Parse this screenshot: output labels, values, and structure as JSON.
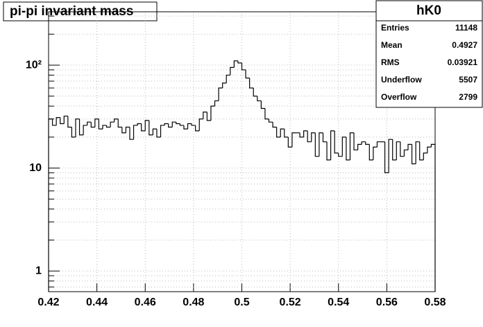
{
  "chart_data": {
    "type": "histogram",
    "title": "pi-pi invariant mass",
    "log_y": true,
    "grid": true,
    "color": "#000000",
    "bins": [
      0.42,
      0.4216,
      0.4232,
      0.4248,
      0.4264,
      0.428,
      0.4296,
      0.4312,
      0.4328,
      0.4344,
      0.436,
      0.4376,
      0.4392,
      0.4408,
      0.4424,
      0.444,
      0.4456,
      0.4472,
      0.4488,
      0.4504,
      0.452,
      0.4536,
      0.4552,
      0.4568,
      0.4584,
      0.46,
      0.4616,
      0.4632,
      0.4648,
      0.4664,
      0.468,
      0.4696,
      0.4712,
      0.4728,
      0.4744,
      0.476,
      0.4776,
      0.4792,
      0.4808,
      0.4824,
      0.484,
      0.4856,
      0.4872,
      0.4888,
      0.4904,
      0.492,
      0.4936,
      0.4952,
      0.4968,
      0.4984,
      0.5,
      0.5016,
      0.5032,
      0.5048,
      0.5064,
      0.508,
      0.5096,
      0.5112,
      0.5128,
      0.5144,
      0.516,
      0.5176,
      0.5192,
      0.5208,
      0.5224,
      0.524,
      0.5256,
      0.5272,
      0.5288,
      0.5304,
      0.532,
      0.5336,
      0.5352,
      0.5368,
      0.5384,
      0.54,
      0.5416,
      0.5432,
      0.5448,
      0.5464,
      0.548,
      0.5496,
      0.5512,
      0.5528,
      0.5544,
      0.556,
      0.5576,
      0.5592,
      0.5608,
      0.5624,
      0.564,
      0.5656,
      0.5672,
      0.5688,
      0.5704,
      0.572,
      0.5736,
      0.5752,
      0.5768,
      0.5784,
      0.58
    ],
    "values": [
      30,
      26,
      31,
      27,
      32,
      25,
      20,
      30,
      21,
      26,
      28,
      25,
      30,
      24,
      26,
      25,
      28,
      30,
      25,
      22,
      25,
      19,
      26,
      27,
      23,
      29,
      21,
      24,
      20,
      26,
      27,
      25,
      28,
      27,
      26,
      24,
      27,
      26,
      23,
      30,
      35,
      29,
      40,
      45,
      60,
      67,
      80,
      95,
      110,
      105,
      90,
      75,
      60,
      50,
      45,
      38,
      30,
      28,
      25,
      20,
      24,
      20,
      16,
      22,
      22,
      20,
      23,
      18,
      22,
      13,
      22,
      18,
      12,
      23,
      14,
      13,
      20,
      12,
      22,
      15,
      17,
      18,
      17,
      12,
      16,
      18,
      18,
      9,
      19,
      12,
      18,
      13,
      15,
      17,
      11,
      18,
      12,
      14,
      16,
      17
    ],
    "xlim": [
      0.42,
      0.58
    ],
    "xticks": [
      0.42,
      0.44,
      0.46,
      0.48,
      0.5,
      0.52,
      0.54,
      0.56,
      0.58
    ],
    "ylim": [
      0.63,
      330
    ],
    "yticks": [
      1,
      10,
      {
        "value": 100,
        "label": "10²"
      }
    ],
    "yminorticks": [
      0.7,
      0.8,
      0.9,
      2,
      3,
      4,
      5,
      6,
      7,
      8,
      9,
      20,
      30,
      40,
      50,
      60,
      70,
      80,
      90,
      200,
      300
    ],
    "stats": {
      "title": "hK0",
      "rows": [
        {
          "label": "Entries",
          "value": 11148
        },
        {
          "label": "Mean",
          "value": 0.4927
        },
        {
          "label": "RMS",
          "value": 0.03921
        },
        {
          "label": "Underflow",
          "value": 5507
        },
        {
          "label": "Overflow",
          "value": 2799
        }
      ]
    }
  }
}
